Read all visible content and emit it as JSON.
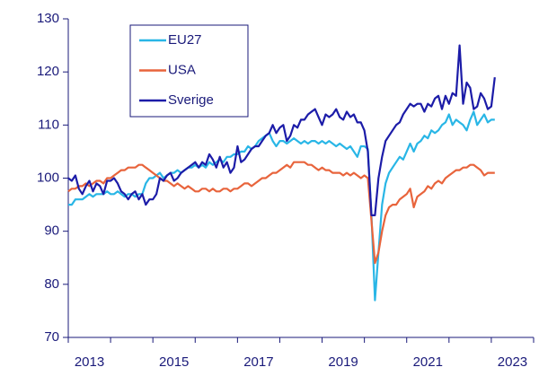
{
  "chart_data": {
    "type": "line",
    "x": [
      2013,
      2013.083,
      2013.167,
      2013.25,
      2013.333,
      2013.417,
      2013.5,
      2013.583,
      2013.667,
      2013.75,
      2013.833,
      2013.917,
      2014,
      2014.083,
      2014.167,
      2014.25,
      2014.333,
      2014.417,
      2014.5,
      2014.583,
      2014.667,
      2014.75,
      2014.833,
      2014.917,
      2015,
      2015.083,
      2015.167,
      2015.25,
      2015.333,
      2015.417,
      2015.5,
      2015.583,
      2015.667,
      2015.75,
      2015.833,
      2015.917,
      2016,
      2016.083,
      2016.167,
      2016.25,
      2016.333,
      2016.417,
      2016.5,
      2016.583,
      2016.667,
      2016.75,
      2016.833,
      2016.917,
      2017,
      2017.083,
      2017.167,
      2017.25,
      2017.333,
      2017.417,
      2017.5,
      2017.583,
      2017.667,
      2017.75,
      2017.833,
      2017.917,
      2018,
      2018.083,
      2018.167,
      2018.25,
      2018.333,
      2018.417,
      2018.5,
      2018.583,
      2018.667,
      2018.75,
      2018.833,
      2018.917,
      2019,
      2019.083,
      2019.167,
      2019.25,
      2019.333,
      2019.417,
      2019.5,
      2019.583,
      2019.667,
      2019.75,
      2019.833,
      2019.917,
      2020,
      2020.083,
      2020.167,
      2020.25,
      2020.333,
      2020.417,
      2020.5,
      2020.583,
      2020.667,
      2020.75,
      2020.833,
      2020.917,
      2021,
      2021.083,
      2021.167,
      2021.25,
      2021.333,
      2021.417,
      2021.5,
      2021.583,
      2021.667,
      2021.75,
      2021.833,
      2021.917,
      2022,
      2022.083,
      2022.167,
      2022.25,
      2022.333,
      2022.417,
      2022.5,
      2022.583,
      2022.667,
      2022.75,
      2022.833,
      2022.917,
      2023,
      2023.083
    ],
    "series": [
      {
        "name": "EU27",
        "color": "#29b6e6",
        "values": [
          95,
          95,
          96,
          96,
          96,
          96.5,
          97,
          96.5,
          97,
          97,
          97,
          97.5,
          97,
          97,
          97.5,
          97,
          96.5,
          97,
          97,
          96.5,
          97,
          97,
          99,
          100,
          100,
          100.5,
          101,
          100,
          100.5,
          101,
          101,
          101.5,
          101,
          101.5,
          102,
          102,
          102.5,
          102,
          102.5,
          102,
          103,
          102.5,
          103,
          103.5,
          103,
          104,
          104,
          104.5,
          104.5,
          105,
          105,
          106,
          105.5,
          106,
          107,
          107.5,
          108,
          108.5,
          107,
          106,
          107,
          107,
          106.5,
          107,
          107.5,
          107,
          106.5,
          107,
          106.5,
          107,
          107,
          106.5,
          107,
          106.5,
          107,
          106.5,
          106,
          106.5,
          106,
          105.5,
          106,
          105,
          104,
          106,
          106,
          105.5,
          93,
          77,
          86,
          95,
          99,
          101,
          102,
          103,
          104,
          103.5,
          105,
          106.5,
          105,
          106.5,
          107,
          108,
          107.5,
          109,
          108.5,
          109,
          110,
          110.5,
          112,
          110,
          111,
          110.5,
          110,
          109,
          111,
          112.5,
          110,
          111,
          112,
          110.5,
          111,
          111
        ]
      },
      {
        "name": "USA",
        "color": "#e8643c",
        "values": [
          97.5,
          98,
          98,
          98.5,
          98.5,
          99,
          98.5,
          99,
          99.5,
          99.5,
          99,
          100,
          100,
          100.5,
          101,
          101.5,
          101.5,
          102,
          102,
          102,
          102.5,
          102.5,
          102,
          101.5,
          101,
          100.5,
          100,
          99.5,
          99.5,
          99,
          98.5,
          99,
          98.5,
          98,
          98.5,
          98,
          97.5,
          97.5,
          98,
          98,
          97.5,
          98,
          97.5,
          97.5,
          98,
          98,
          97.5,
          98,
          98,
          98.5,
          99,
          99,
          98.5,
          99,
          99.5,
          100,
          100,
          100.5,
          101,
          101,
          101.5,
          102,
          102.5,
          102,
          103,
          103,
          103,
          103,
          102.5,
          102.5,
          102,
          101.5,
          102,
          101.5,
          101.5,
          101,
          101,
          101,
          100.5,
          101,
          100.5,
          101,
          100.5,
          100,
          100.5,
          100,
          92,
          84,
          86,
          90,
          93,
          94.5,
          95,
          95,
          96,
          96.5,
          97,
          98,
          94.5,
          96.5,
          97,
          97.5,
          98.5,
          98,
          99,
          99.5,
          99,
          100,
          100.5,
          101,
          101.5,
          101.5,
          102,
          102,
          102.5,
          102.5,
          102,
          101.5,
          100.5,
          101,
          101,
          101
        ]
      },
      {
        "name": "Sverige",
        "color": "#1c1ca8",
        "values": [
          100,
          99.5,
          100.5,
          98,
          97,
          98.5,
          99.5,
          97.5,
          99,
          98.5,
          97,
          99.5,
          99.5,
          100,
          99,
          97.5,
          97,
          96,
          97,
          97.5,
          96,
          97,
          95,
          96,
          96,
          97,
          100,
          99.5,
          100.5,
          101,
          99.5,
          100,
          101,
          101.5,
          102,
          102.5,
          103,
          102,
          103,
          102.5,
          104.5,
          103.5,
          102,
          104,
          102,
          103,
          101,
          102,
          106,
          103,
          103.5,
          104.5,
          105.5,
          106,
          106,
          107,
          108,
          108.5,
          110,
          108.5,
          109.5,
          110,
          107,
          108,
          110,
          109.5,
          111,
          111,
          112,
          112.5,
          113,
          111.5,
          110,
          112,
          111.5,
          112,
          113,
          111.5,
          111,
          112.5,
          111.5,
          112,
          110.5,
          110.5,
          109,
          105,
          93,
          93,
          100,
          104,
          107,
          108,
          109,
          110,
          110.5,
          112,
          113,
          114,
          113.5,
          114,
          114,
          112.5,
          114,
          113.5,
          115,
          115.5,
          113,
          115.5,
          114,
          116,
          115.5,
          125,
          114,
          118,
          117,
          113,
          113.5,
          116,
          115,
          113,
          113.5,
          119
        ]
      }
    ],
    "xlim": [
      2013,
      2024
    ],
    "xticks": [
      2013,
      2015,
      2017,
      2019,
      2021,
      2023
    ],
    "ylim": [
      70,
      130
    ],
    "yticks": [
      70,
      80,
      90,
      100,
      110,
      120,
      130
    ],
    "legend": "upper-left"
  }
}
